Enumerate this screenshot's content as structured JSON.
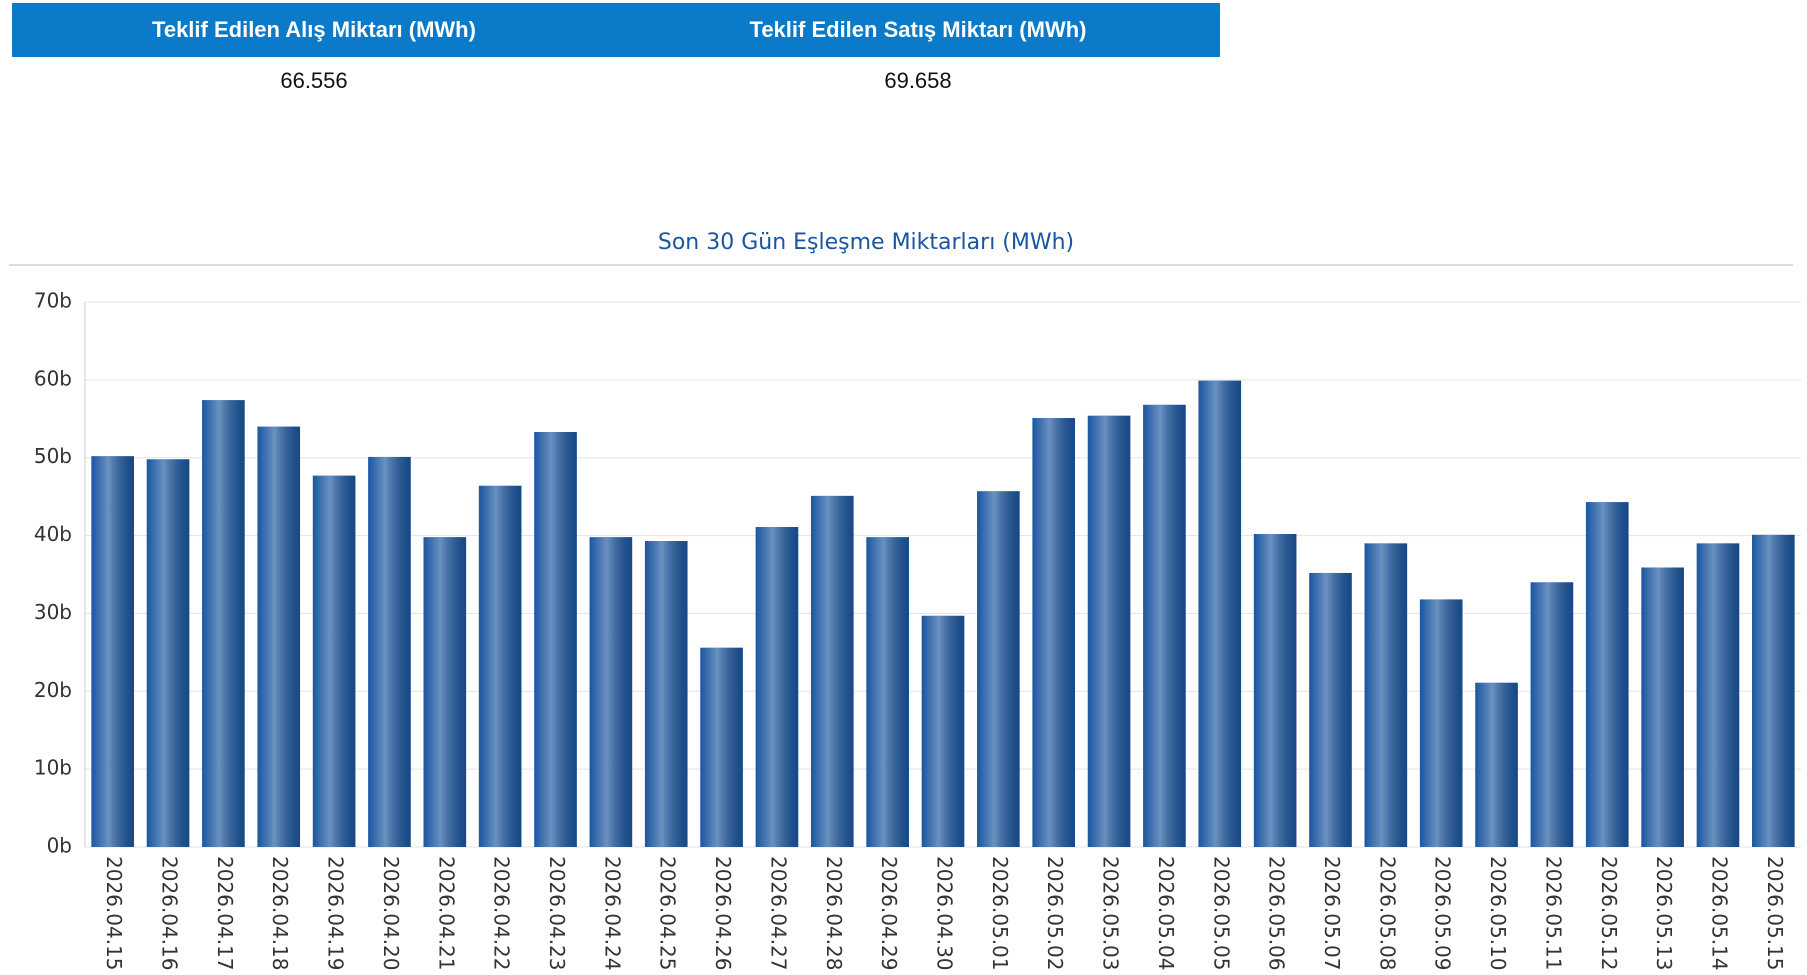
{
  "table": {
    "headers": [
      "Teklif Edilen Alış Miktarı (MWh)",
      "Teklif Edilen Satış Miktarı (MWh)"
    ],
    "rows": [
      [
        "66.556",
        "69.658"
      ]
    ]
  },
  "chart_data": {
    "type": "bar",
    "title": "Son 30 Gün Eşleşme Miktarları (MWh)",
    "categories": [
      "2026.04.15",
      "2026.04.16",
      "2026.04.17",
      "2026.04.18",
      "2026.04.19",
      "2026.04.20",
      "2026.04.21",
      "2026.04.22",
      "2026.04.23",
      "2026.04.24",
      "2026.04.25",
      "2026.04.26",
      "2026.04.27",
      "2026.04.28",
      "2026.04.29",
      "2026.04.30",
      "2026.05.01",
      "2026.05.02",
      "2026.05.03",
      "2026.05.04",
      "2026.05.05",
      "2026.05.06",
      "2026.05.07",
      "2026.05.08",
      "2026.05.09",
      "2026.05.10",
      "2026.05.11",
      "2026.05.12",
      "2026.05.13",
      "2026.05.14",
      "2026.05.15"
    ],
    "values": [
      50.2,
      49.8,
      57.4,
      54.0,
      47.7,
      50.1,
      39.8,
      46.4,
      53.3,
      39.8,
      39.3,
      25.6,
      41.1,
      45.1,
      39.8,
      29.7,
      45.7,
      55.1,
      55.4,
      56.8,
      59.9,
      40.2,
      35.2,
      39.0,
      31.8,
      21.1,
      34.0,
      44.3,
      35.9,
      39.0,
      40.1
    ],
    "color": "#1a56a0",
    "ylim": [
      0,
      70
    ],
    "yticks": [
      {
        "value": 0,
        "label": "0b"
      },
      {
        "value": 10,
        "label": "10b"
      },
      {
        "value": 20,
        "label": "20b"
      },
      {
        "value": 30,
        "label": "30b"
      },
      {
        "value": 40,
        "label": "40b"
      },
      {
        "value": 50,
        "label": "50b"
      },
      {
        "value": 60,
        "label": "60b"
      },
      {
        "value": 70,
        "label": "70b"
      }
    ],
    "grid": true
  }
}
